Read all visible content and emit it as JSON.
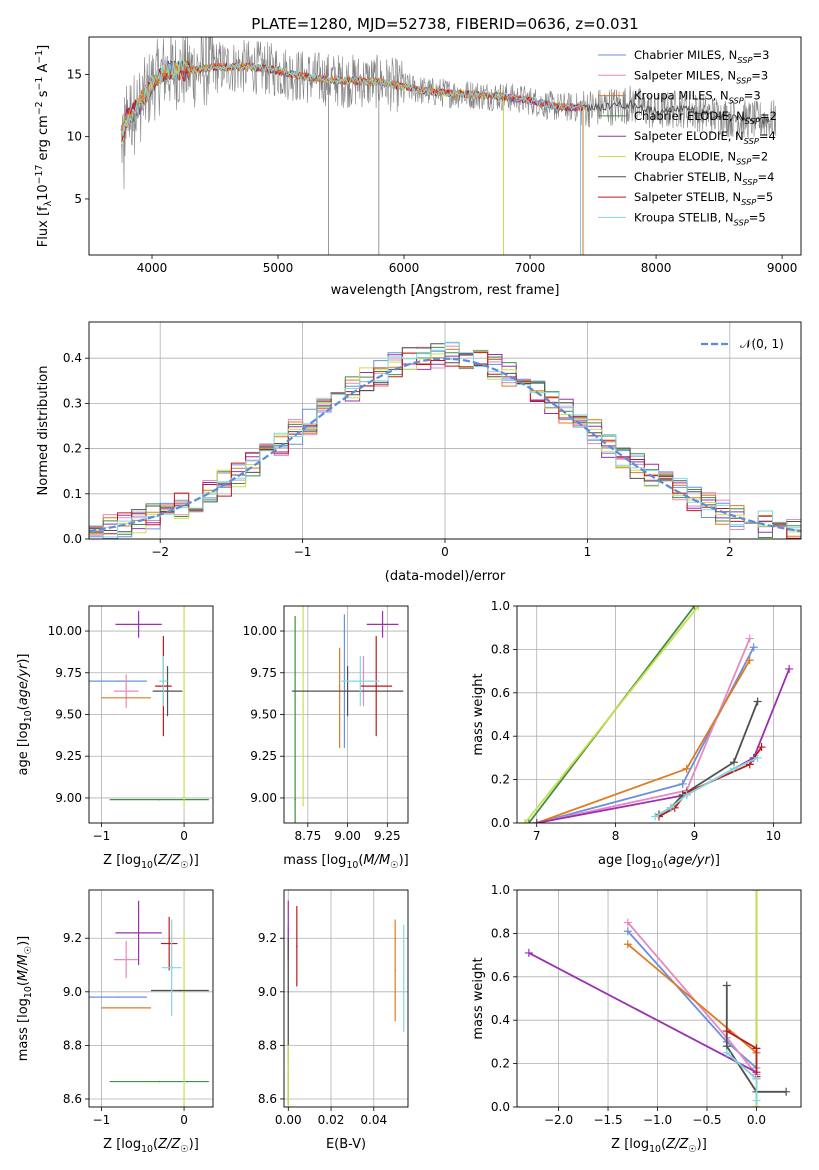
{
  "figure": {
    "title": "PLATE=1280, MJD=52738, FIBERID=0636, z=0.031"
  },
  "colors": {
    "chabrier_miles": "#6890e0",
    "salpeter_miles": "#e888c0",
    "kroupa_miles": "#e07a20",
    "chabrier_elodie": "#409040",
    "salpeter_elodie": "#9a30b0",
    "kroupa_elodie": "#c8e050",
    "chabrier_stelib": "#505050",
    "salpeter_stelib": "#c01818",
    "kroupa_stelib": "#80d8e0",
    "data": "#808080"
  },
  "chart_data": [
    {
      "id": "spectrum",
      "type": "line",
      "xlabel": "wavelength [Angstrom, rest frame]",
      "ylabel_parts": [
        "Flux [f",
        "λ",
        "10",
        "−17",
        " erg cm",
        "−2",
        " s",
        "−1",
        " A",
        "−1",
        "]"
      ],
      "xlim": [
        3500,
        9150
      ],
      "ylim": [
        0.5,
        18
      ],
      "xticks": [
        4000,
        5000,
        6000,
        7000,
        8000,
        9000
      ],
      "yticks": [
        5,
        10,
        15
      ],
      "grid": false,
      "legend_position": "top-right",
      "legend": [
        {
          "base": "Chabrier MILES, N",
          "sub": "SSP",
          "tail": "=3",
          "color": "#6890e0"
        },
        {
          "base": "Salpeter MILES, N",
          "sub": "SSP",
          "tail": "=3",
          "color": "#e888c0"
        },
        {
          "base": "Kroupa MILES, N",
          "sub": "SSP",
          "tail": "=3",
          "color": "#e07a20"
        },
        {
          "base": "Chabrier ELODIE, N",
          "sub": "SSP",
          "tail": "=2",
          "color": "#409040"
        },
        {
          "base": "Salpeter ELODIE, N",
          "sub": "SSP",
          "tail": "=4",
          "color": "#9a30b0"
        },
        {
          "base": "Kroupa ELODIE, N",
          "sub": "SSP",
          "tail": "=2",
          "color": "#c8e050"
        },
        {
          "base": "Chabrier STELIB, N",
          "sub": "SSP",
          "tail": "=4",
          "color": "#505050"
        },
        {
          "base": "Salpeter STELIB, N",
          "sub": "SSP",
          "tail": "=5",
          "color": "#c01818"
        },
        {
          "base": "Kroupa STELIB, N",
          "sub": "SSP",
          "tail": "=5",
          "color": "#80d8e0"
        }
      ],
      "continuum_knots": [
        [
          3750,
          9.5
        ],
        [
          3800,
          11.5
        ],
        [
          3900,
          12.5
        ],
        [
          4000,
          14.2
        ],
        [
          4100,
          15.3
        ],
        [
          4300,
          15.3
        ],
        [
          4500,
          15.6
        ],
        [
          4800,
          15.6
        ],
        [
          5000,
          15.3
        ],
        [
          5200,
          14.8
        ],
        [
          5500,
          14.5
        ],
        [
          5800,
          14.4
        ],
        [
          6000,
          14.0
        ],
        [
          6200,
          13.6
        ],
        [
          6500,
          13.4
        ],
        [
          6800,
          13.2
        ],
        [
          7000,
          12.9
        ],
        [
          7200,
          12.4
        ],
        [
          7500,
          12.3
        ],
        [
          7800,
          12.6
        ],
        [
          8000,
          12.0
        ],
        [
          8200,
          12.3
        ],
        [
          8400,
          11.8
        ],
        [
          8600,
          11.5
        ],
        [
          8800,
          11.3
        ],
        [
          8950,
          11.4
        ]
      ],
      "model_end_wavelengths": [
        7400,
        7400,
        7420,
        7400,
        7400,
        6790,
        8900,
        7420,
        7400
      ],
      "observed_sharp_dips": [
        [
          5400,
          0.5
        ],
        [
          5800,
          0.5
        ],
        [
          7420,
          0.5
        ],
        [
          6790,
          0.5
        ]
      ]
    },
    {
      "id": "residuals",
      "type": "histogram",
      "xlabel": "(data-model)/error",
      "ylabel": "Normed distribution",
      "xlim": [
        -2.5,
        2.5
      ],
      "ylim": [
        0,
        0.48
      ],
      "xticks": [
        -2,
        -1,
        0,
        1,
        2
      ],
      "yticks": [
        0.0,
        0.1,
        0.2,
        0.3,
        0.4
      ],
      "grid": true,
      "legend_position": "top-right",
      "reference_curve": {
        "label": "𝒩(0, 1)",
        "mean": 0,
        "sigma": 1,
        "color": "#5b8bd9",
        "style": "dashed"
      },
      "bin_edges_start": -2.5,
      "bin_width": 0.1,
      "models": [
        "chabrier_miles",
        "salpeter_miles",
        "kroupa_miles",
        "chabrier_elodie",
        "salpeter_elodie",
        "kroupa_elodie",
        "chabrier_stelib",
        "salpeter_stelib",
        "kroupa_stelib"
      ]
    },
    {
      "id": "age_vs_z",
      "type": "errorbar",
      "xlabel": "Z [log10(Z/Z☉)]",
      "ylabel": "age [log10(age/yr)]",
      "xlim": [
        -1.15,
        0.35
      ],
      "ylim": [
        8.85,
        10.15
      ],
      "xticks": [
        -1,
        0
      ],
      "yticks": [
        9.0,
        9.25,
        9.5,
        9.75,
        10.0
      ],
      "grid": true,
      "points": [
        {
          "model": "chabrier_miles",
          "x": -0.8,
          "y": 9.7,
          "xerr": 0.35,
          "yerr": 0.0
        },
        {
          "model": "salpeter_miles",
          "x": -0.7,
          "y": 9.64,
          "xerr": 0.15,
          "yerr": 0.1
        },
        {
          "model": "kroupa_miles",
          "x": -0.7,
          "y": 9.6,
          "xerr": 0.3,
          "yerr": 0.0
        },
        {
          "model": "chabrier_elodie",
          "x": -0.3,
          "y": 8.99,
          "xerr": 0.6,
          "yerr": 0.0
        },
        {
          "model": "salpeter_elodie",
          "x": -0.55,
          "y": 10.04,
          "xerr": 0.28,
          "yerr": 0.08
        },
        {
          "model": "kroupa_elodie",
          "x": 0.0,
          "y": 9.55,
          "xerr": 0.0,
          "yerr": 0.6
        },
        {
          "model": "chabrier_stelib",
          "x": -0.2,
          "y": 9.64,
          "xerr": 0.18,
          "yerr": 0.15
        },
        {
          "model": "salpeter_stelib",
          "x": -0.25,
          "y": 9.67,
          "xerr": 0.1,
          "yerr": 0.3
        },
        {
          "model": "kroupa_stelib",
          "x": -0.25,
          "y": 9.7,
          "xerr": 0.05,
          "yerr": 0.15
        }
      ]
    },
    {
      "id": "age_vs_mass",
      "type": "errorbar",
      "xlabel": "mass [log10(M/M☉)]",
      "ylabel": "",
      "xlim": [
        8.6,
        9.38
      ],
      "ylim": [
        8.85,
        10.15
      ],
      "xticks": [
        8.75,
        9.0,
        9.25
      ],
      "yticks": [
        9.0,
        9.25,
        9.5,
        9.75,
        10.0
      ],
      "grid": true,
      "points": [
        {
          "model": "chabrier_miles",
          "x": 8.98,
          "y": 9.7,
          "xerr": 0.0,
          "yerr": 0.4
        },
        {
          "model": "salpeter_miles",
          "x": 9.1,
          "y": 9.7,
          "xerr": 0.0,
          "yerr": 0.15
        },
        {
          "model": "kroupa_miles",
          "x": 8.95,
          "y": 9.6,
          "xerr": 0.0,
          "yerr": 0.3
        },
        {
          "model": "chabrier_elodie",
          "x": 8.67,
          "y": 8.99,
          "xerr": 0.0,
          "yerr": 1.1
        },
        {
          "model": "salpeter_elodie",
          "x": 9.22,
          "y": 10.04,
          "xerr": 0.1,
          "yerr": 0.08
        },
        {
          "model": "kroupa_elodie",
          "x": 8.72,
          "y": 9.55,
          "xerr": 0.0,
          "yerr": 0.6
        },
        {
          "model": "chabrier_stelib",
          "x": 9.0,
          "y": 9.64,
          "xerr": 0.35,
          "yerr": 0.15
        },
        {
          "model": "salpeter_stelib",
          "x": 9.18,
          "y": 9.67,
          "xerr": 0.1,
          "yerr": 0.3
        },
        {
          "model": "kroupa_stelib",
          "x": 9.08,
          "y": 9.7,
          "xerr": 0.12,
          "yerr": 0.15
        }
      ]
    },
    {
      "id": "mass_weight_vs_age",
      "type": "line",
      "xlabel": "age [log10(age/yr)]",
      "ylabel": "mass weight",
      "xlim": [
        6.75,
        10.35
      ],
      "ylim": [
        0,
        1.0
      ],
      "xticks": [
        7,
        8,
        9,
        10
      ],
      "yticks": [
        0.0,
        0.2,
        0.4,
        0.6,
        0.8,
        1.0
      ],
      "grid": true,
      "series": [
        {
          "model": "chabrier_miles",
          "x": [
            7.0,
            8.85,
            9.75
          ],
          "y": [
            0.0,
            0.18,
            0.81
          ]
        },
        {
          "model": "salpeter_miles",
          "x": [
            7.0,
            8.9,
            9.7
          ],
          "y": [
            0.0,
            0.15,
            0.85
          ]
        },
        {
          "model": "kroupa_miles",
          "x": [
            7.0,
            8.9,
            9.7
          ],
          "y": [
            0.0,
            0.25,
            0.75
          ]
        },
        {
          "model": "chabrier_elodie",
          "x": [
            6.9,
            9.0
          ],
          "y": [
            0.0,
            1.0
          ]
        },
        {
          "model": "salpeter_elodie",
          "x": [
            7.0,
            8.9,
            9.75,
            10.2
          ],
          "y": [
            0.0,
            0.13,
            0.3,
            0.71
          ]
        },
        {
          "model": "kroupa_elodie",
          "x": [
            6.85,
            9.05
          ],
          "y": [
            0.0,
            1.0
          ]
        },
        {
          "model": "chabrier_stelib",
          "x": [
            8.55,
            8.7,
            8.85,
            9.5,
            9.8
          ],
          "y": [
            0.04,
            0.07,
            0.13,
            0.28,
            0.56
          ]
        },
        {
          "model": "salpeter_stelib",
          "x": [
            8.55,
            8.75,
            8.9,
            9.7,
            9.85
          ],
          "y": [
            0.03,
            0.07,
            0.14,
            0.27,
            0.35
          ]
        },
        {
          "model": "kroupa_stelib",
          "x": [
            8.5,
            8.7,
            8.9,
            9.5,
            9.8
          ],
          "y": [
            0.03,
            0.07,
            0.13,
            0.25,
            0.3
          ]
        }
      ]
    },
    {
      "id": "mass_vs_z",
      "type": "errorbar",
      "xlabel": "Z [log10(Z/Z☉)]",
      "ylabel": "mass [log10(M/M☉)]",
      "xlim": [
        -1.15,
        0.35
      ],
      "ylim": [
        8.57,
        9.38
      ],
      "xticks": [
        -1,
        0
      ],
      "yticks": [
        8.6,
        8.8,
        9.0,
        9.2
      ],
      "grid": true,
      "points": [
        {
          "model": "chabrier_miles",
          "x": -0.8,
          "y": 8.98,
          "xerr": 0.35,
          "yerr": 0.0
        },
        {
          "model": "salpeter_miles",
          "x": -0.7,
          "y": 9.12,
          "xerr": 0.15,
          "yerr": 0.07
        },
        {
          "model": "kroupa_miles",
          "x": -0.7,
          "y": 8.94,
          "xerr": 0.3,
          "yerr": 0.0
        },
        {
          "model": "chabrier_elodie",
          "x": -0.3,
          "y": 8.665,
          "xerr": 0.6,
          "yerr": 0.0
        },
        {
          "model": "salpeter_elodie",
          "x": -0.55,
          "y": 9.22,
          "xerr": 0.28,
          "yerr": 0.12
        },
        {
          "model": "kroupa_elodie",
          "x": 0.0,
          "y": 8.72,
          "xerr": 0.0,
          "yerr": 0.5
        },
        {
          "model": "chabrier_stelib",
          "x": -0.05,
          "y": 9.005,
          "xerr": 0.35,
          "yerr": 0.0
        },
        {
          "model": "salpeter_stelib",
          "x": -0.18,
          "y": 9.18,
          "xerr": 0.1,
          "yerr": 0.1
        },
        {
          "model": "kroupa_stelib",
          "x": -0.15,
          "y": 9.09,
          "xerr": 0.12,
          "yerr": 0.18
        }
      ]
    },
    {
      "id": "mass_vs_ebv",
      "type": "errorbar",
      "xlabel": "E(B-V)",
      "ylabel": "",
      "xlim": [
        -0.002,
        0.056
      ],
      "ylim": [
        8.57,
        9.38
      ],
      "xticks": [
        0.0,
        0.02,
        0.04
      ],
      "yticks": [
        8.6,
        8.8,
        9.0,
        9.2
      ],
      "grid": true,
      "points": [
        {
          "model": "chabrier_miles",
          "x": 0.0,
          "y": 9.0,
          "xerr": 0.0,
          "yerr": 0.25
        },
        {
          "model": "salpeter_miles",
          "x": 0.0,
          "y": 9.1,
          "xerr": 0.0,
          "yerr": 0.15
        },
        {
          "model": "kroupa_miles",
          "x": 0.05,
          "y": 9.08,
          "xerr": 0.0,
          "yerr": 0.19
        },
        {
          "model": "chabrier_elodie",
          "x": 0.0,
          "y": 8.68,
          "xerr": 0.0,
          "yerr": 0.1
        },
        {
          "model": "salpeter_elodie",
          "x": 0.0,
          "y": 9.22,
          "xerr": 0.0,
          "yerr": 0.12
        },
        {
          "model": "kroupa_elodie",
          "x": 0.0,
          "y": 8.72,
          "xerr": 0.0,
          "yerr": 0.4
        },
        {
          "model": "chabrier_stelib",
          "x": 0.0,
          "y": 9.0,
          "xerr": 0.0,
          "yerr": 0.2
        },
        {
          "model": "salpeter_stelib",
          "x": 0.004,
          "y": 9.17,
          "xerr": 0.0,
          "yerr": 0.15
        },
        {
          "model": "kroupa_stelib",
          "x": 0.054,
          "y": 9.05,
          "xerr": 0.0,
          "yerr": 0.2
        }
      ]
    },
    {
      "id": "mass_weight_vs_z",
      "type": "line",
      "xlabel": "Z [log10(Z/Z☉)]",
      "ylabel": "mass weight",
      "xlim": [
        -2.42,
        0.45
      ],
      "ylim": [
        0,
        1.0
      ],
      "xticks": [
        -2.0,
        -1.5,
        -1.0,
        -0.5,
        0.0
      ],
      "yticks": [
        0.0,
        0.2,
        0.4,
        0.6,
        0.8,
        1.0
      ],
      "grid": true,
      "series": [
        {
          "model": "chabrier_miles",
          "x": [
            -1.3,
            -0.3,
            0.0
          ],
          "y": [
            0.81,
            0.3,
            0.18
          ]
        },
        {
          "model": "salpeter_miles",
          "x": [
            -1.3,
            -0.3,
            0.0
          ],
          "y": [
            0.85,
            0.32,
            0.15
          ]
        },
        {
          "model": "kroupa_miles",
          "x": [
            -1.3,
            0.0
          ],
          "y": [
            0.75,
            0.25
          ]
        },
        {
          "model": "chabrier_elodie",
          "x": [
            0.0,
            0.0
          ],
          "y": [
            0.0,
            1.0
          ]
        },
        {
          "model": "salpeter_elodie",
          "x": [
            -2.3,
            0.0,
            0.0
          ],
          "y": [
            0.71,
            0.16,
            0.13
          ]
        },
        {
          "model": "kroupa_elodie",
          "x": [
            0.0,
            0.0
          ],
          "y": [
            0.0,
            1.0
          ]
        },
        {
          "model": "chabrier_stelib",
          "x": [
            -0.3,
            -0.3,
            0.0,
            0.3
          ],
          "y": [
            0.56,
            0.28,
            0.07,
            0.07
          ]
        },
        {
          "model": "salpeter_stelib",
          "x": [
            -0.3,
            0.0,
            0.0
          ],
          "y": [
            0.35,
            0.27,
            0.14
          ]
        },
        {
          "model": "kroupa_stelib",
          "x": [
            -0.3,
            0.0,
            0.0
          ],
          "y": [
            0.25,
            0.13,
            0.03
          ]
        }
      ]
    }
  ]
}
